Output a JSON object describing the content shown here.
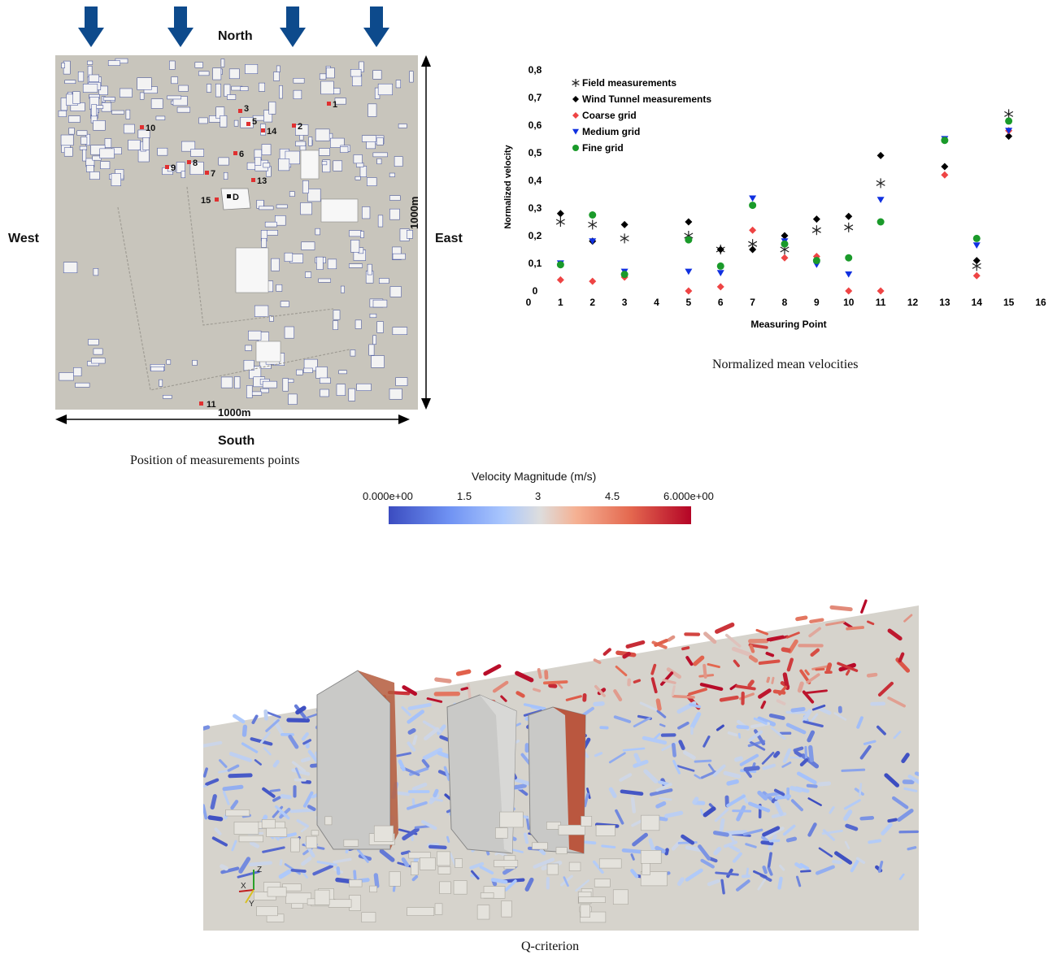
{
  "map": {
    "compass": {
      "north": "North",
      "south": "South",
      "east": "East",
      "west": "West"
    },
    "dim_vertical": "1000m",
    "dim_horizontal": "1000m",
    "points": [
      {
        "label": "1"
      },
      {
        "label": "2"
      },
      {
        "label": "3"
      },
      {
        "label": "5"
      },
      {
        "label": "14"
      },
      {
        "label": "10"
      },
      {
        "label": "6"
      },
      {
        "label": "9"
      },
      {
        "label": "8"
      },
      {
        "label": "7"
      },
      {
        "label": "13"
      },
      {
        "label": "15"
      },
      {
        "label": "D"
      },
      {
        "label": "11"
      }
    ],
    "caption": "Position of measurements points",
    "colors": {
      "ground": "#c8c5bc",
      "buildings": "#f3f3f3",
      "outline": "#3a4a9a",
      "point": "#e03030",
      "arrow": "#0d4a8c"
    }
  },
  "chart_data": {
    "type": "scatter",
    "xlabel": "Measuring Point",
    "ylabel": "Normalized velocity",
    "xlim": [
      0,
      16
    ],
    "ylim": [
      0,
      0.8
    ],
    "xticks": [
      "0",
      "1",
      "2",
      "3",
      "4",
      "5",
      "6",
      "7",
      "8",
      "9",
      "10",
      "11",
      "12",
      "13",
      "14",
      "15",
      "16"
    ],
    "yticks": [
      "0",
      "0,1",
      "0,2",
      "0,3",
      "0,4",
      "0,5",
      "0,6",
      "0,7",
      "0,8"
    ],
    "legend_position": "top-left",
    "series": [
      {
        "name": "Field measurements",
        "marker": "asterisk",
        "color": "#222222",
        "x": [
          1,
          2,
          3,
          5,
          6,
          7,
          8,
          9,
          10,
          11,
          14,
          15
        ],
        "y": [
          0.25,
          0.24,
          0.19,
          0.2,
          0.15,
          0.17,
          0.15,
          0.22,
          0.23,
          0.39,
          0.09,
          0.64
        ]
      },
      {
        "name": "Wind Tunnel measurements",
        "marker": "diamond",
        "color": "#000000",
        "x": [
          1,
          2,
          3,
          5,
          6,
          7,
          8,
          9,
          10,
          11,
          13,
          14,
          15
        ],
        "y": [
          0.28,
          0.18,
          0.24,
          0.25,
          0.15,
          0.15,
          0.2,
          0.26,
          0.27,
          0.49,
          0.45,
          0.11,
          0.56
        ]
      },
      {
        "name": "Coarse grid",
        "marker": "diamond",
        "color": "#ee4444",
        "x": [
          1,
          2,
          3,
          5,
          6,
          7,
          8,
          9,
          10,
          11,
          13,
          14,
          15
        ],
        "y": [
          0.04,
          0.035,
          0.05,
          0.0,
          0.015,
          0.22,
          0.12,
          0.125,
          0.0,
          0.0,
          0.42,
          0.055,
          0.58
        ]
      },
      {
        "name": "Medium grid",
        "marker": "triangle-down",
        "color": "#1030e0",
        "x": [
          1,
          2,
          3,
          5,
          6,
          7,
          8,
          9,
          10,
          11,
          13,
          14,
          15
        ],
        "y": [
          0.1,
          0.18,
          0.07,
          0.07,
          0.065,
          0.335,
          0.18,
          0.095,
          0.06,
          0.33,
          0.55,
          0.165,
          0.58
        ]
      },
      {
        "name": "Fine grid",
        "marker": "circle",
        "color": "#1a9a2a",
        "x": [
          1,
          2,
          3,
          5,
          6,
          7,
          8,
          9,
          10,
          11,
          13,
          14,
          15
        ],
        "y": [
          0.095,
          0.275,
          0.06,
          0.185,
          0.09,
          0.31,
          0.17,
          0.11,
          0.12,
          0.25,
          0.545,
          0.19,
          0.615
        ]
      }
    ],
    "caption": "Normalized mean velocities"
  },
  "qcriterion": {
    "colorbar_title": "Velocity Magnitude (m/s)",
    "ticks": [
      "0.000e+00",
      "1.5",
      "3",
      "4.5",
      "6.000e+00"
    ],
    "axes_labels": {
      "x": "X",
      "y": "Y",
      "z": "Z"
    },
    "caption": "Q-criterion",
    "colors": {
      "low": "#3b4cc0",
      "mid": "#dddddd",
      "high": "#b40426",
      "ground": "#d6d3cc"
    }
  }
}
